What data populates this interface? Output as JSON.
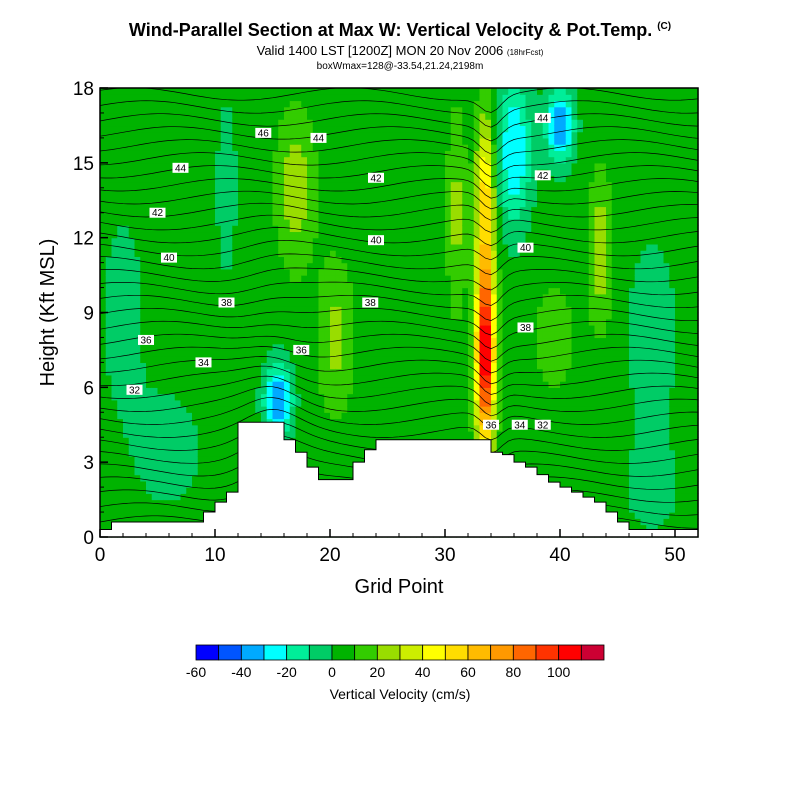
{
  "title": {
    "main": "Wind-Parallel Section at Max W: Vertical Velocity & Pot.Temp.",
    "copyright": "(C)",
    "valid": "Valid 1400 LST [1200Z] MON 20 Nov 2006",
    "fcst": "(18hrFcst)",
    "box": "boxWmax=128@-33.54,21.24,2198m"
  },
  "chart_data": {
    "type": "heatmap",
    "xlabel": "Grid Point",
    "ylabel": "Height (Kft MSL)",
    "xlim": [
      0,
      52
    ],
    "ylim": [
      0,
      18
    ],
    "xticks": [
      0,
      10,
      20,
      30,
      40,
      50
    ],
    "yticks": [
      0,
      3,
      6,
      9,
      12,
      15,
      18
    ],
    "colorbar": {
      "label": "Vertical Velocity (cm/s)",
      "tick_labels": [
        "-60",
        "-40",
        "-20",
        "0",
        "20",
        "40",
        "60",
        "80",
        "100"
      ],
      "tick_values": [
        -60,
        -40,
        -20,
        0,
        20,
        40,
        60,
        80,
        100
      ],
      "bins": [
        -60,
        -50,
        -40,
        -30,
        -20,
        -10,
        0,
        10,
        20,
        30,
        40,
        50,
        60,
        70,
        80,
        90,
        100,
        110
      ],
      "colors": [
        "#0000ff",
        "#0055ff",
        "#00aaff",
        "#00ffff",
        "#00ee99",
        "#00cc66",
        "#00b300",
        "#33cc00",
        "#99dd00",
        "#ccee00",
        "#ffff00",
        "#ffdd00",
        "#ffbb00",
        "#ff9900",
        "#ff6600",
        "#ff3300",
        "#ff0000",
        "#cc0033"
      ]
    },
    "terrain_height_kft": [
      [
        0,
        0.3
      ],
      [
        1,
        0.6
      ],
      [
        8,
        0.6
      ],
      [
        9,
        1.0
      ],
      [
        10,
        1.4
      ],
      [
        11,
        1.8
      ],
      [
        12,
        4.6
      ],
      [
        15,
        4.6
      ],
      [
        16,
        3.9
      ],
      [
        17,
        3.4
      ],
      [
        18,
        2.8
      ],
      [
        19,
        2.3
      ],
      [
        21,
        2.3
      ],
      [
        22,
        3.0
      ],
      [
        23,
        3.5
      ],
      [
        24,
        3.9
      ],
      [
        33,
        3.9
      ],
      [
        34,
        3.4
      ],
      [
        35,
        3.3
      ],
      [
        36,
        3.0
      ],
      [
        37,
        2.8
      ],
      [
        38,
        2.5
      ],
      [
        39,
        2.2
      ],
      [
        40,
        2.0
      ],
      [
        41,
        1.8
      ],
      [
        42,
        1.6
      ],
      [
        43,
        1.4
      ],
      [
        44,
        1.0
      ],
      [
        45,
        0.6
      ],
      [
        46,
        0.3
      ],
      [
        52,
        0.3
      ]
    ],
    "velocity_features": [
      {
        "x": 33.5,
        "y": 7.5,
        "sx": 0.8,
        "sy": 4.0,
        "value": 110
      },
      {
        "x": 33.5,
        "y": 14.0,
        "sx": 0.8,
        "sy": 3.0,
        "value": 45
      },
      {
        "x": 15.5,
        "y": 5.5,
        "sx": 1.2,
        "sy": 1.5,
        "value": -45
      },
      {
        "x": 36.0,
        "y": 15.5,
        "sx": 1.5,
        "sy": 3.0,
        "value": -35
      },
      {
        "x": 40.0,
        "y": 16.5,
        "sx": 1.2,
        "sy": 1.5,
        "value": -45
      },
      {
        "x": 17.0,
        "y": 14.0,
        "sx": 1.6,
        "sy": 3.0,
        "value": 22
      },
      {
        "x": 20.5,
        "y": 8.0,
        "sx": 1.5,
        "sy": 3.0,
        "value": 18
      },
      {
        "x": 31.0,
        "y": 13.0,
        "sx": 0.8,
        "sy": 4.0,
        "value": 18
      },
      {
        "x": 43.5,
        "y": 11.5,
        "sx": 1.0,
        "sy": 3.0,
        "value": 22
      },
      {
        "x": 39.5,
        "y": 8.0,
        "sx": 1.5,
        "sy": 2.0,
        "value": 15
      },
      {
        "x": 48.0,
        "y": 8.0,
        "sx": 2.0,
        "sy": 3.5,
        "value": -15
      },
      {
        "x": 2.0,
        "y": 9.0,
        "sx": 2.5,
        "sy": 5.0,
        "value": -8
      },
      {
        "x": 6.0,
        "y": 3.5,
        "sx": 3.0,
        "sy": 2.5,
        "value": -10
      },
      {
        "x": 11.0,
        "y": 14.0,
        "sx": 1.0,
        "sy": 4.0,
        "value": -10
      },
      {
        "x": 48.0,
        "y": 2.0,
        "sx": 2.5,
        "sy": 2.0,
        "value": -10
      }
    ],
    "background_velocity": 5,
    "contour_labels": [
      {
        "x": 14.2,
        "y": 16.2,
        "text": "46"
      },
      {
        "x": 19.0,
        "y": 16.0,
        "text": "44"
      },
      {
        "x": 7.0,
        "y": 14.8,
        "text": "44"
      },
      {
        "x": 24.0,
        "y": 14.4,
        "text": "42"
      },
      {
        "x": 5.0,
        "y": 13.0,
        "text": "42"
      },
      {
        "x": 24.0,
        "y": 11.9,
        "text": "40"
      },
      {
        "x": 6.0,
        "y": 11.2,
        "text": "40"
      },
      {
        "x": 11.0,
        "y": 9.4,
        "text": "38"
      },
      {
        "x": 23.5,
        "y": 9.4,
        "text": "38"
      },
      {
        "x": 4.0,
        "y": 7.9,
        "text": "36"
      },
      {
        "x": 17.5,
        "y": 7.5,
        "text": "36"
      },
      {
        "x": 9.0,
        "y": 7.0,
        "text": "34"
      },
      {
        "x": 3.0,
        "y": 5.9,
        "text": "32"
      },
      {
        "x": 38.5,
        "y": 16.8,
        "text": "44"
      },
      {
        "x": 38.5,
        "y": 14.5,
        "text": "42"
      },
      {
        "x": 37.0,
        "y": 11.6,
        "text": "40"
      },
      {
        "x": 37.0,
        "y": 8.4,
        "text": "38"
      },
      {
        "x": 34.0,
        "y": 4.5,
        "text": "36"
      },
      {
        "x": 36.5,
        "y": 4.5,
        "text": "34"
      },
      {
        "x": 38.5,
        "y": 4.5,
        "text": "32"
      }
    ]
  }
}
